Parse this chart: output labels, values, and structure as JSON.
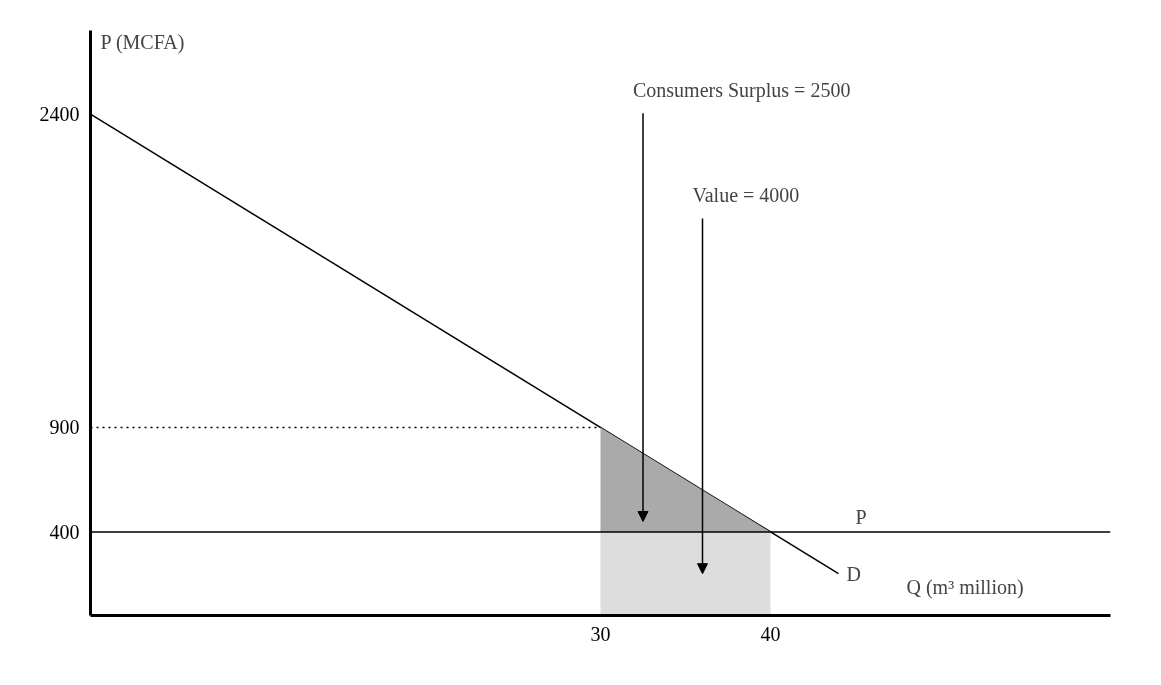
{
  "chart_data": {
    "type": "line",
    "xlabel": "Q (m³ million)",
    "ylabel": "P (MCFA)",
    "xlim": [
      0,
      60
    ],
    "ylim": [
      0,
      2800
    ],
    "xticks": [
      30,
      40
    ],
    "yticks": [
      400,
      900,
      2400
    ],
    "grid": false,
    "stacked": true,
    "series": [
      {
        "name": "D",
        "color": "#000000",
        "x": [
          0,
          44
        ],
        "values": [
          2400,
          200
        ]
      },
      {
        "type": "line",
        "color": "#000000",
        "line_style": "dotted",
        "x": [
          0,
          30
        ],
        "values": [
          900,
          900
        ]
      },
      {
        "type": "area",
        "color": "#dddddd",
        "x": [
          30,
          40
        ],
        "values": [
          400,
          400
        ]
      },
      {
        "type": "area",
        "color": "#aaaaaa",
        "x": [
          30,
          40
        ],
        "values": [
          500,
          0
        ]
      }
    ],
    "ref_lines": [
      {
        "axis": "y",
        "value": 400,
        "label": "P",
        "color": "#000000"
      }
    ],
    "annotations": [
      "Consumers Surplus = 2500",
      "Value = 4000"
    ]
  }
}
